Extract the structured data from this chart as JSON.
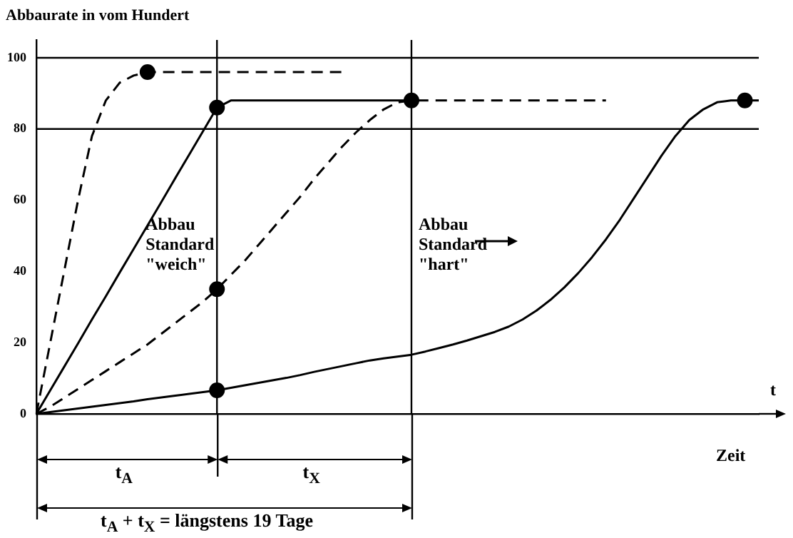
{
  "chart_data": {
    "type": "line",
    "ylabel": "Abbaurate in vom Hundert",
    "xlabel": "Zeit",
    "ylim": [
      0,
      105
    ],
    "yticks": [
      0,
      20,
      40,
      60,
      80,
      100
    ],
    "tick_labels": "y",
    "categories": [
      null,
      null,
      null,
      null,
      null,
      null,
      null,
      null,
      null,
      null,
      null,
      null,
      null,
      null,
      null,
      null,
      null,
      null,
      null,
      null,
      null,
      null,
      null,
      null,
      null,
      null,
      null,
      null,
      null,
      null,
      null,
      null,
      null,
      null,
      null,
      null,
      null,
      null,
      null,
      null,
      null,
      null,
      null,
      null,
      null,
      null,
      null,
      null,
      null,
      null,
      null,
      null,
      null
    ],
    "series": [
      {
        "color": "#000000",
        "line_style": "dashed",
        "marker": "none",
        "values": [
          0,
          20,
          40,
          60,
          78,
          88,
          93,
          95,
          96,
          96,
          96,
          96,
          96,
          96,
          96,
          96,
          96,
          96,
          96,
          96,
          96,
          96,
          96,
          null,
          null,
          null,
          null,
          null,
          null,
          null,
          null,
          null,
          null,
          null,
          null,
          null,
          null,
          null,
          null,
          null,
          null,
          null,
          null,
          null,
          null,
          null,
          null,
          null,
          null,
          null,
          null,
          null,
          null
        ]
      },
      {
        "color": "#000000",
        "line_style": "solid",
        "marker": "none",
        "values": [
          0,
          6.6,
          13.2,
          19.8,
          26.5,
          33,
          39.7,
          46.3,
          52.9,
          59.5,
          66.2,
          72.8,
          79.4,
          86,
          88,
          88,
          88,
          88,
          88,
          88,
          88,
          88,
          88,
          88,
          88,
          88,
          88,
          88,
          null,
          null,
          null,
          null,
          null,
          null,
          null,
          null,
          null,
          null,
          null,
          null,
          null,
          null,
          null,
          null,
          null,
          null,
          null,
          null,
          null,
          null,
          null,
          null,
          null
        ]
      },
      {
        "color": "#000000",
        "line_style": "dashed",
        "marker": "none",
        "values": [
          0,
          2,
          4.5,
          7,
          9.5,
          12,
          14.5,
          17,
          19.5,
          22.5,
          25.5,
          28.5,
          31.5,
          35,
          39,
          43,
          47.5,
          52,
          56.5,
          61,
          66,
          70.5,
          75,
          79,
          82.5,
          85.5,
          87.5,
          88,
          88,
          88,
          88,
          88,
          88,
          88,
          88,
          88,
          88,
          88,
          88,
          88,
          88,
          88,
          null,
          null,
          null,
          null,
          null,
          null,
          null,
          null,
          null,
          null,
          null
        ]
      },
      {
        "color": "#000000",
        "line_style": "solid",
        "marker": "none",
        "values": [
          0,
          0.5,
          1,
          1.5,
          2,
          2.5,
          3,
          3.5,
          4.1,
          4.6,
          5.1,
          5.6,
          6.1,
          6.6,
          7.3,
          8,
          8.7,
          9.4,
          10.1,
          10.9,
          11.8,
          12.6,
          13.4,
          14.2,
          15,
          15.6,
          16.1,
          16.6,
          17.5,
          18.5,
          19.5,
          20.6,
          21.8,
          23,
          24.5,
          26.5,
          29,
          32,
          35.5,
          39.5,
          44,
          49,
          54.5,
          60.5,
          66.5,
          72.5,
          78,
          82.5,
          85.5,
          87.5,
          88,
          88,
          88
        ]
      },
      {
        "type": "scatter",
        "color": "#000000",
        "marker": "circle",
        "values": [
          null,
          null,
          null,
          null,
          null,
          null,
          null,
          null,
          96,
          null,
          null,
          null,
          null,
          86,
          null,
          null,
          null,
          null,
          null,
          null,
          null,
          null,
          null,
          null,
          null,
          null,
          null,
          88,
          null,
          null,
          null,
          null,
          null,
          null,
          null,
          null,
          null,
          null,
          null,
          null,
          null,
          null,
          null,
          null,
          null,
          null,
          null,
          null,
          null,
          null,
          null,
          88,
          null
        ]
      },
      {
        "type": "scatter",
        "color": "#000000",
        "marker": "circle",
        "values": [
          null,
          null,
          null,
          null,
          null,
          null,
          null,
          null,
          null,
          null,
          null,
          null,
          null,
          35,
          null,
          null,
          null,
          null,
          null,
          null,
          null,
          null,
          null,
          null,
          null,
          null,
          null,
          null,
          null,
          null,
          null,
          null,
          null,
          null,
          null,
          null,
          null,
          null,
          null,
          null,
          null,
          null,
          null,
          null,
          null,
          null,
          null,
          null,
          null,
          null,
          null,
          null,
          null
        ]
      },
      {
        "type": "scatter",
        "color": "#000000",
        "marker": "circle",
        "values": [
          null,
          null,
          null,
          null,
          null,
          null,
          null,
          null,
          null,
          null,
          null,
          null,
          null,
          6.6,
          null,
          null,
          null,
          null,
          null,
          null,
          null,
          null,
          null,
          null,
          null,
          null,
          null,
          null,
          null,
          null,
          null,
          null,
          null,
          null,
          null,
          null,
          null,
          null,
          null,
          null,
          null,
          null,
          null,
          null,
          null,
          null,
          null,
          null,
          null,
          null,
          null,
          null,
          null
        ]
      }
    ],
    "ref_lines": [
      {
        "axis": "y",
        "value": 100,
        "color": "#000000"
      },
      {
        "axis": "y",
        "value": 80,
        "color": "#000000"
      }
    ],
    "annotations": [
      "Abbau Standard \"weich\"",
      "Abbau Standard \"hart\"",
      "t",
      "t$_{A}$",
      "t$_{X}$",
      "t$_{A}$ +  t$_{X}$ = längstens 19 Tage"
    ]
  }
}
